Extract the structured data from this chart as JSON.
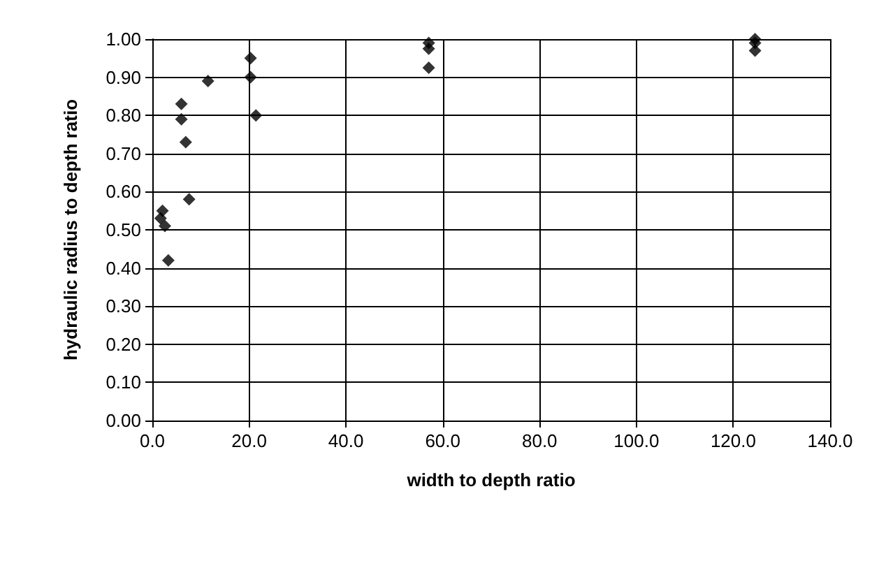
{
  "chart_data": {
    "type": "scatter",
    "xlabel": "width to depth ratio",
    "ylabel": "hydraulic radius to depth ratio",
    "series": [
      {
        "color": "#000000",
        "x": [
          2.1,
          1.7,
          2.6,
          3.3,
          6.0,
          6.0,
          6.9,
          7.6,
          11.5,
          20.3,
          20.3,
          21.4,
          57.1,
          57.1,
          57.1,
          124.5,
          124.5,
          124.5
        ],
        "values": [
          0.55,
          0.53,
          0.51,
          0.42,
          0.83,
          0.79,
          0.73,
          0.58,
          0.89,
          0.95,
          0.9,
          0.8,
          0.99,
          0.975,
          0.925,
          1.0,
          0.99,
          0.97
        ]
      }
    ],
    "xlim": [
      0,
      140
    ],
    "xticks": [
      {
        "value": 0,
        "label": "0.0"
      },
      {
        "value": 20,
        "label": "20.0"
      },
      {
        "value": 40,
        "label": "40.0"
      },
      {
        "value": 60,
        "label": "60.0"
      },
      {
        "value": 80,
        "label": "80.0"
      },
      {
        "value": 100,
        "label": "100.0"
      },
      {
        "value": 120,
        "label": "120.0"
      },
      {
        "value": 140,
        "label": "140.0"
      }
    ],
    "ylim": [
      0,
      1
    ],
    "yticks": [
      {
        "value": 0,
        "label": "0.00"
      },
      {
        "value": 0.1,
        "label": "0.10"
      },
      {
        "value": 0.2,
        "label": "0.20"
      },
      {
        "value": 0.3,
        "label": "0.30"
      },
      {
        "value": 0.4,
        "label": "0.40"
      },
      {
        "value": 0.5,
        "label": "0.50"
      },
      {
        "value": 0.6,
        "label": "0.60"
      },
      {
        "value": 0.7,
        "label": "0.70"
      },
      {
        "value": 0.8,
        "label": "0.80"
      },
      {
        "value": 0.9,
        "label": "0.90"
      },
      {
        "value": 1,
        "label": "1.00"
      }
    ],
    "grid": true,
    "marker": "diamond"
  }
}
